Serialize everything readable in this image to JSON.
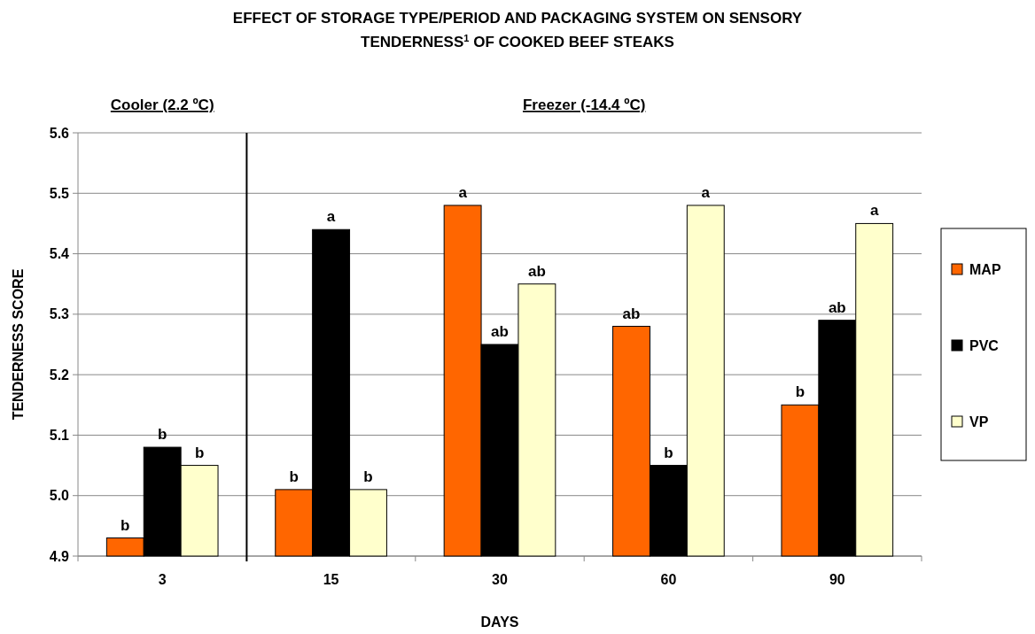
{
  "chart_data": [
    {
      "type": "bar",
      "title": "Cooler (2.2 ºC)",
      "ylabel": "TENDERNESS SCORE",
      "categories": [
        "3"
      ],
      "series": [
        {
          "color": "#ff6600",
          "values": [
            4.93
          ],
          "value_labels": [
            "b"
          ]
        },
        {
          "color": "#000000",
          "values": [
            5.08
          ],
          "value_labels": [
            "b"
          ]
        },
        {
          "color": "#ffffcc",
          "values": [
            5.05
          ],
          "value_labels": [
            "b"
          ]
        }
      ],
      "ylim": [
        4.9,
        5.6
      ],
      "yticks": [
        {
          "value": 4.9,
          "label": "4.9"
        },
        {
          "value": 5.0,
          "label": "5.0"
        },
        {
          "value": 5.1,
          "label": "5.1"
        },
        {
          "value": 5.2,
          "label": "5.2"
        },
        {
          "value": 5.3,
          "label": "5.3"
        },
        {
          "value": 5.4,
          "label": "5.4"
        },
        {
          "value": 5.5,
          "label": "5.5"
        },
        {
          "value": 5.6,
          "label": "5.6"
        }
      ],
      "grid": "y"
    },
    {
      "type": "bar",
      "title": "EFFECT OF STORAGE TYPE/PERIOD AND PACKAGING SYSTEM ON SENSORY TENDERNESS$^{1}$ OF COOKED BEEF STEAKS",
      "subtitle": "Freezer (-14.4 ºC)",
      "xlabel": "DAYS",
      "categories": [
        "15",
        "30",
        "60",
        "90"
      ],
      "series": [
        {
          "name": "MAP",
          "color": "#ff6600",
          "values": [
            5.01,
            5.48,
            5.28,
            5.15
          ],
          "value_labels": [
            "b",
            "a",
            "ab",
            "b"
          ]
        },
        {
          "name": "PVC",
          "color": "#000000",
          "values": [
            5.44,
            5.25,
            5.05,
            5.29
          ],
          "value_labels": [
            "a",
            "ab",
            "b",
            "ab"
          ]
        },
        {
          "name": "VP",
          "color": "#ffffcc",
          "values": [
            5.01,
            5.35,
            5.48,
            5.45
          ],
          "value_labels": [
            "b",
            "ab",
            "a",
            "a"
          ]
        }
      ],
      "ylim": [
        4.9,
        5.6
      ],
      "yticks": [
        4.9,
        5.0,
        5.1,
        5.2,
        5.3,
        5.4,
        5.5,
        5.6
      ],
      "grid": "y",
      "legend": "right",
      "tick_labels": "x"
    }
  ]
}
